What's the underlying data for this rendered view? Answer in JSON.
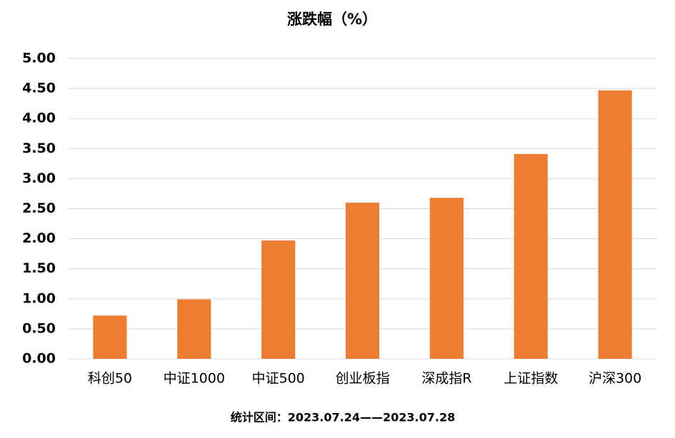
{
  "chart_data": {
    "type": "bar",
    "title": "涨跌幅（%）",
    "categories": [
      "科创50",
      "中证1000",
      "中证500",
      "创业板指",
      "深成指R",
      "上证指数",
      "沪深300"
    ],
    "values": [
      0.72,
      0.99,
      1.97,
      2.6,
      2.68,
      3.41,
      4.47
    ],
    "color": "#ed7d31",
    "ylim": [
      0,
      5
    ],
    "yticks": [
      {
        "value": 0,
        "label": "0.00"
      },
      {
        "value": 0.5,
        "label": "0.50"
      },
      {
        "value": 1,
        "label": "1.00"
      },
      {
        "value": 1.5,
        "label": "1.50"
      },
      {
        "value": 2,
        "label": "2.00"
      },
      {
        "value": 2.5,
        "label": "2.50"
      },
      {
        "value": 3,
        "label": "3.00"
      },
      {
        "value": 3.5,
        "label": "3.50"
      },
      {
        "value": 4,
        "label": "4.00"
      },
      {
        "value": 4.5,
        "label": "4.50"
      },
      {
        "value": 5,
        "label": "5.00"
      }
    ],
    "grid": true,
    "footnote": "统计区间：2023.07.24——2023.07.28"
  }
}
